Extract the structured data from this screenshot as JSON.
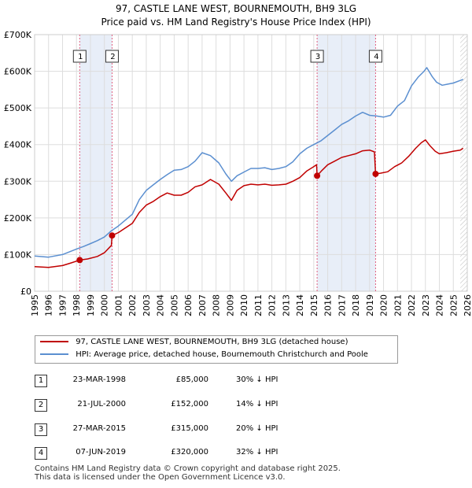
{
  "header": {
    "title_line1": "97, CASTLE LANE WEST, BOURNEMOUTH, BH9 3LG",
    "title_line2": "Price paid vs. HM Land Registry's House Price Index (HPI)"
  },
  "colors": {
    "property": "#c00000",
    "hpi": "#5b8fd0",
    "shade": "#e8eef8",
    "marker_line": "#e06080"
  },
  "chart_data": {
    "type": "line",
    "xlim": [
      1995,
      2026
    ],
    "ylim": [
      0,
      700000
    ],
    "yticks": [
      0,
      100000,
      200000,
      300000,
      400000,
      500000,
      600000,
      700000
    ],
    "yticklabels": [
      "£0",
      "£100K",
      "£200K",
      "£300K",
      "£400K",
      "£500K",
      "£600K",
      "£700K"
    ],
    "xticks": [
      1995,
      1996,
      1997,
      1998,
      1999,
      2000,
      2001,
      2002,
      2003,
      2004,
      2005,
      2006,
      2007,
      2008,
      2009,
      2010,
      2011,
      2012,
      2013,
      2014,
      2015,
      2016,
      2017,
      2018,
      2019,
      2020,
      2021,
      2022,
      2023,
      2024,
      2025,
      2026
    ],
    "xticklabels": [
      "1995",
      "1996",
      "1997",
      "1998",
      "1999",
      "2000",
      "2001",
      "2002",
      "2003",
      "2004",
      "2005",
      "2006",
      "2007",
      "2008",
      "2009",
      "2010",
      "2011",
      "2012",
      "2013",
      "2014",
      "2015",
      "2016",
      "2017",
      "2018",
      "2019",
      "2020",
      "2021",
      "2022",
      "2023",
      "2024",
      "2025",
      "2026"
    ],
    "series": [
      {
        "name": "97, CASTLE LANE WEST, BOURNEMOUTH, BH9 3LG (detached house)",
        "color": "#c00000",
        "x": [
          1995.0,
          1996.0,
          1997.0,
          1997.6,
          1998.23,
          1998.8,
          1999.5,
          2000.0,
          2000.5,
          2000.55,
          2001.0,
          2002.0,
          2002.5,
          2003.0,
          2003.5,
          2004.0,
          2004.5,
          2005.0,
          2005.5,
          2006.0,
          2006.5,
          2007.0,
          2007.6,
          2008.2,
          2008.7,
          2009.1,
          2009.5,
          2010.0,
          2010.5,
          2011.0,
          2011.5,
          2012.0,
          2012.5,
          2013.0,
          2013.5,
          2014.0,
          2014.5,
          2015.0,
          2015.2,
          2015.24,
          2015.6,
          2016.0,
          2016.5,
          2017.0,
          2017.5,
          2018.0,
          2018.5,
          2019.0,
          2019.35,
          2019.43,
          2019.8,
          2020.3,
          2020.8,
          2021.3,
          2021.8,
          2022.3,
          2022.7,
          2023.0,
          2023.3,
          2023.7,
          2024.0,
          2024.5,
          2025.0,
          2025.5,
          2025.7
        ],
        "values": [
          67000,
          65000,
          70000,
          77000,
          85000,
          88000,
          95000,
          105000,
          125000,
          152000,
          160000,
          185000,
          215000,
          235000,
          245000,
          258000,
          268000,
          262000,
          262000,
          270000,
          285000,
          290000,
          305000,
          292000,
          268000,
          248000,
          275000,
          288000,
          292000,
          290000,
          292000,
          289000,
          290000,
          292000,
          300000,
          310000,
          328000,
          340000,
          345000,
          315000,
          330000,
          345000,
          355000,
          365000,
          370000,
          375000,
          383000,
          385000,
          380000,
          320000,
          322000,
          326000,
          340000,
          350000,
          368000,
          390000,
          405000,
          413000,
          398000,
          382000,
          375000,
          378000,
          382000,
          385000,
          390000
        ]
      },
      {
        "name": "HPI: Average price, detached house, Bournemouth Christchurch and Poole",
        "color": "#5b8fd0",
        "x": [
          1995.0,
          1996.0,
          1997.0,
          1998.0,
          1998.5,
          1999.0,
          1999.5,
          2000.0,
          2000.5,
          2001.0,
          2002.0,
          2002.5,
          2003.0,
          2003.5,
          2004.0,
          2004.5,
          2005.0,
          2005.5,
          2006.0,
          2006.5,
          2007.0,
          2007.6,
          2008.2,
          2008.7,
          2009.1,
          2009.5,
          2010.0,
          2010.5,
          2011.0,
          2011.5,
          2012.0,
          2012.5,
          2013.0,
          2013.5,
          2014.0,
          2014.5,
          2015.0,
          2015.5,
          2016.0,
          2016.5,
          2017.0,
          2017.5,
          2018.0,
          2018.5,
          2019.0,
          2019.5,
          2020.0,
          2020.5,
          2021.0,
          2021.5,
          2022.0,
          2022.5,
          2022.9,
          2023.1,
          2023.5,
          2023.8,
          2024.2,
          2024.6,
          2025.0,
          2025.5,
          2025.7
        ],
        "values": [
          96000,
          93000,
          100000,
          115000,
          122000,
          130000,
          138000,
          148000,
          165000,
          178000,
          210000,
          250000,
          275000,
          290000,
          305000,
          318000,
          330000,
          332000,
          340000,
          355000,
          378000,
          370000,
          350000,
          320000,
          300000,
          315000,
          325000,
          335000,
          335000,
          337000,
          332000,
          335000,
          340000,
          353000,
          375000,
          390000,
          400000,
          410000,
          425000,
          440000,
          455000,
          465000,
          478000,
          488000,
          480000,
          478000,
          475000,
          480000,
          505000,
          520000,
          560000,
          585000,
          600000,
          610000,
          585000,
          570000,
          562000,
          565000,
          568000,
          575000,
          578000
        ]
      }
    ],
    "sales": [
      {
        "label": "1",
        "x": 1998.23,
        "value": 85000
      },
      {
        "label": "2",
        "x": 2000.55,
        "value": 152000
      },
      {
        "label": "3",
        "x": 2015.24,
        "value": 315000
      },
      {
        "label": "4",
        "x": 2019.43,
        "value": 320000
      }
    ],
    "shaded_ranges": [
      [
        1998.23,
        2000.55
      ],
      [
        2015.24,
        2019.43
      ]
    ],
    "hatch_start": 2025.5
  },
  "legend": {
    "property_label": "97, CASTLE LANE WEST, BOURNEMOUTH, BH9 3LG (detached house)",
    "hpi_label": "HPI: Average price, detached house, Bournemouth Christchurch and Poole"
  },
  "sales_table": [
    {
      "num": "1",
      "date": "23-MAR-1998",
      "price": "£85,000",
      "hpi": "30% ↓ HPI"
    },
    {
      "num": "2",
      "date": "21-JUL-2000",
      "price": "£152,000",
      "hpi": "14% ↓ HPI"
    },
    {
      "num": "3",
      "date": "27-MAR-2015",
      "price": "£315,000",
      "hpi": "20% ↓ HPI"
    },
    {
      "num": "4",
      "date": "07-JUN-2019",
      "price": "£320,000",
      "hpi": "32% ↓ HPI"
    }
  ],
  "footer": {
    "line1": "Contains HM Land Registry data © Crown copyright and database right 2025.",
    "line2": "This data is licensed under the Open Government Licence v3.0."
  }
}
